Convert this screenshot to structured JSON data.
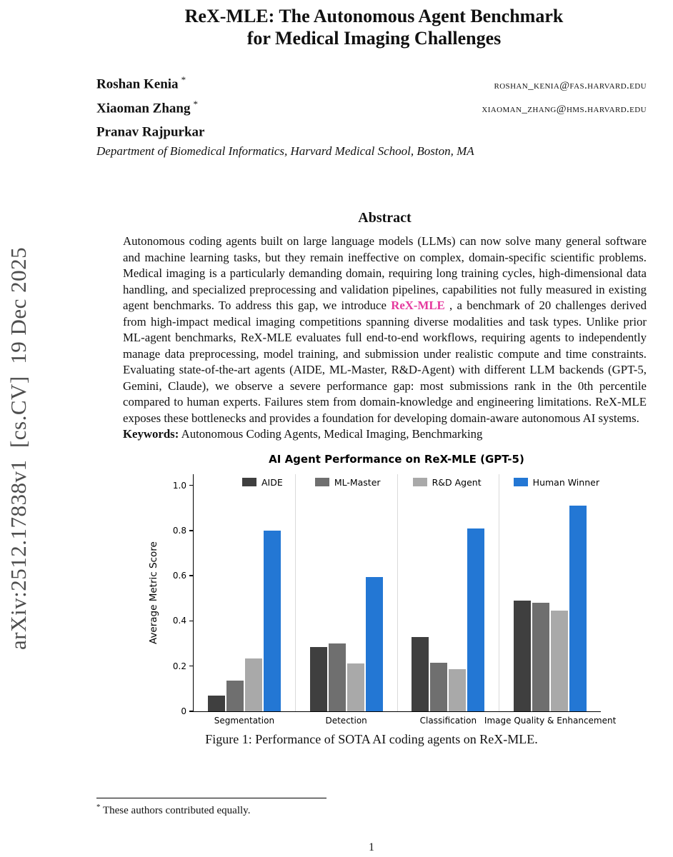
{
  "page": {
    "number": "1"
  },
  "sidebar": {
    "arxiv_label": "arXiv:2512.17838v1  [cs.CV]  19 Dec 2025"
  },
  "header": {
    "title_line1": "ReX-MLE: The Autonomous Agent Benchmark",
    "title_line2": "for Medical Imaging Challenges"
  },
  "authors": [
    {
      "name": "Roshan Kenia",
      "note": "*",
      "email": "roshan_kenia@fas.harvard.edu"
    },
    {
      "name": "Xiaoman Zhang",
      "note": "*",
      "email": "xiaoman_zhang@hms.harvard.edu"
    },
    {
      "name": "Pranav Rajpurkar",
      "note": "",
      "email": ""
    }
  ],
  "affiliation": "Department of Biomedical Informatics, Harvard Medical School, Boston, MA",
  "abstract": {
    "heading": "Abstract",
    "text_before": "Autonomous coding agents built on large language models (LLMs) can now solve many general software and machine learning tasks, but they remain ineffective on complex, domain-specific scientific problems. Medical imaging is a particularly demanding domain, requiring long training cycles, high-dimensional data handling, and specialized preprocessing and validation pipelines, capabilities not fully measured in existing agent benchmarks. To address this gap, we introduce ",
    "highlight": "ReX-MLE",
    "highlight_color": "#e5399e",
    "text_after": " , a benchmark of 20 challenges derived from high-impact medical imaging competitions spanning diverse modalities and task types. Unlike prior ML-agent benchmarks, ReX-MLE evaluates full end-to-end workflows, requiring agents to independently manage data preprocessing, model training, and submission under realistic compute and time constraints. Evaluating state-of-the-art agents (AIDE, ML-Master, R&D-Agent) with different LLM backends (GPT-5, Gemini, Claude), we observe a severe performance gap: most submissions rank in the 0th percentile compared to human experts. Failures stem from domain-knowledge and engineering limitations. ReX-MLE exposes these bottlenecks and provides a foundation for developing domain-aware autonomous AI systems.",
    "keywords_label": "Keywords:",
    "keywords": "Autonomous Coding Agents, Medical Imaging, Benchmarking"
  },
  "chart_data": {
    "type": "bar",
    "title": "AI Agent Performance on ReX-MLE (GPT-5)",
    "categories": [
      "Segmentation",
      "Detection",
      "Classification",
      "Image Quality & Enhancement"
    ],
    "series": [
      {
        "name": "AIDE",
        "color": "#3f3f3f",
        "values": [
          0.07,
          0.285,
          0.33,
          0.49
        ]
      },
      {
        "name": "ML-Master",
        "color": "#6f6f6f",
        "values": [
          0.135,
          0.3,
          0.215,
          0.48
        ]
      },
      {
        "name": "R&D Agent",
        "color": "#a9a9a9",
        "values": [
          0.235,
          0.21,
          0.185,
          0.445
        ]
      },
      {
        "name": "Human Winner",
        "color": "#2377d4",
        "values": [
          0.8,
          0.595,
          0.81,
          0.91
        ]
      }
    ],
    "xlabel": "",
    "ylabel": "Average Metric Score",
    "ylim": [
      0,
      1.05
    ],
    "yticks": [
      0,
      0.2,
      0.4,
      0.6,
      0.8,
      1.0
    ],
    "ytick_labels": [
      "0",
      "0.2",
      "0.4",
      "0.6",
      "0.8",
      "1.0"
    ],
    "grid": "faint vertical separators between category groups",
    "legend_position": "top-inside"
  },
  "figure": {
    "caption": "Figure 1: Performance of SOTA AI coding agents on ReX-MLE."
  },
  "footnote": {
    "marker": "*",
    "text": "These authors contributed equally."
  }
}
